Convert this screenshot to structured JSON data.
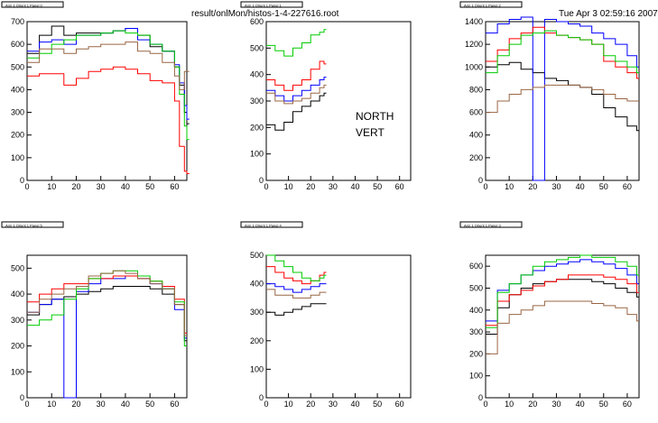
{
  "header": {
    "file_path": "result/onlMon/histos-1-4-227616.root",
    "timestamp": "Tue Apr  3 02:59:16 2007"
  },
  "overlay": {
    "north": "NORTH",
    "vert": "VERT"
  },
  "series_colors": [
    "#000000",
    "#0000ff",
    "#ff0000",
    "#00cc00",
    "#996644"
  ],
  "chart_data": [
    {
      "type": "line",
      "title": "Arm 1 Orient 1 Panel 0",
      "xlim": [
        0,
        65
      ],
      "ylim": [
        0,
        700
      ],
      "xticks": [
        0,
        10,
        20,
        30,
        40,
        50,
        60
      ],
      "yticks": [
        0,
        100,
        200,
        300,
        400,
        500,
        600,
        700
      ],
      "x": [
        0,
        5,
        10,
        15,
        20,
        25,
        30,
        35,
        40,
        45,
        50,
        55,
        60,
        62,
        64,
        65
      ],
      "series": [
        {
          "values": [
            560,
            640,
            680,
            640,
            650,
            650,
            650,
            660,
            670,
            640,
            590,
            570,
            500,
            420,
            300,
            250
          ]
        },
        {
          "values": [
            570,
            610,
            620,
            600,
            640,
            640,
            650,
            660,
            670,
            620,
            600,
            570,
            510,
            430,
            330,
            270
          ]
        },
        {
          "values": [
            460,
            470,
            470,
            420,
            450,
            480,
            490,
            500,
            490,
            470,
            440,
            430,
            350,
            150,
            40,
            30
          ]
        },
        {
          "values": [
            540,
            560,
            600,
            620,
            640,
            640,
            650,
            660,
            650,
            640,
            600,
            570,
            500,
            380,
            240,
            180
          ]
        },
        {
          "values": [
            520,
            580,
            580,
            560,
            580,
            590,
            600,
            600,
            610,
            570,
            560,
            520,
            460,
            400,
            480,
            480
          ]
        }
      ]
    },
    {
      "type": "line",
      "title": "Arm 1 Orient 1 Panel 1",
      "xlim": [
        0,
        65
      ],
      "ylim": [
        0,
        600
      ],
      "xticks": [
        0,
        10,
        20,
        30,
        40,
        50,
        60
      ],
      "yticks": [
        0,
        100,
        200,
        300,
        400,
        500,
        600
      ],
      "x": [
        0,
        4,
        8,
        12,
        16,
        20,
        24,
        26
      ],
      "series": [
        {
          "values": [
            210,
            190,
            220,
            260,
            280,
            300,
            320,
            330
          ]
        },
        {
          "values": [
            340,
            320,
            300,
            320,
            340,
            360,
            380,
            390
          ]
        },
        {
          "values": [
            380,
            360,
            340,
            360,
            380,
            420,
            450,
            440
          ]
        },
        {
          "values": [
            510,
            490,
            470,
            500,
            520,
            550,
            560,
            570
          ]
        },
        {
          "values": [
            330,
            300,
            290,
            300,
            310,
            330,
            350,
            360
          ]
        }
      ]
    },
    {
      "type": "line",
      "title": "Arm 1 Orient 1 Panel 2",
      "xlim": [
        0,
        65
      ],
      "ylim": [
        0,
        1400
      ],
      "xticks": [
        0,
        10,
        20,
        30,
        40,
        50,
        60
      ],
      "yticks": [
        0,
        200,
        400,
        600,
        800,
        1000,
        1200,
        1400
      ],
      "x": [
        0,
        5,
        10,
        15,
        20,
        25,
        30,
        35,
        40,
        45,
        50,
        55,
        60,
        64
      ],
      "series": [
        {
          "values": [
            1000,
            1020,
            1040,
            980,
            950,
            900,
            880,
            840,
            820,
            760,
            640,
            560,
            480,
            440
          ]
        },
        {
          "values": [
            1300,
            1380,
            1420,
            1440,
            0,
            1420,
            1400,
            1380,
            1360,
            1300,
            1250,
            1200,
            1100,
            1000
          ]
        },
        {
          "values": [
            1050,
            1150,
            1250,
            1300,
            1350,
            1300,
            1280,
            1260,
            1240,
            1200,
            1050,
            1000,
            950,
            900
          ]
        },
        {
          "values": [
            950,
            1100,
            1200,
            1280,
            1300,
            1320,
            1280,
            1260,
            1240,
            1200,
            1100,
            1050,
            1000,
            950
          ]
        },
        {
          "values": [
            600,
            700,
            760,
            800,
            820,
            840,
            840,
            840,
            820,
            800,
            760,
            720,
            700,
            700
          ]
        }
      ]
    },
    {
      "type": "line",
      "title": "Arm 1 Orient 1 Panel 5",
      "xlim": [
        0,
        65
      ],
      "ylim": [
        0,
        550
      ],
      "xticks": [
        0,
        10,
        20,
        30,
        40,
        50,
        60
      ],
      "yticks": [
        0,
        100,
        200,
        300,
        400,
        500
      ],
      "x": [
        0,
        5,
        10,
        15,
        20,
        25,
        30,
        35,
        40,
        45,
        50,
        55,
        60,
        64
      ],
      "series": [
        {
          "values": [
            320,
            360,
            380,
            390,
            400,
            410,
            420,
            430,
            430,
            430,
            420,
            400,
            360,
            220
          ]
        },
        {
          "values": [
            330,
            360,
            380,
            0,
            410,
            440,
            460,
            460,
            470,
            460,
            440,
            420,
            340,
            230
          ]
        },
        {
          "values": [
            370,
            400,
            420,
            440,
            440,
            460,
            460,
            470,
            470,
            460,
            450,
            430,
            380,
            250
          ]
        },
        {
          "values": [
            280,
            300,
            320,
            380,
            420,
            460,
            480,
            490,
            490,
            470,
            450,
            420,
            370,
            200
          ]
        },
        {
          "values": [
            330,
            380,
            400,
            420,
            430,
            470,
            480,
            490,
            480,
            460,
            440,
            420,
            360,
            240
          ]
        }
      ]
    },
    {
      "type": "line",
      "title": "Arm 1 Orient 1 Panel 4",
      "xlim": [
        0,
        65
      ],
      "ylim": [
        0,
        500
      ],
      "xticks": [
        0,
        10,
        20,
        30,
        40,
        50,
        60
      ],
      "yticks": [
        0,
        100,
        200,
        300,
        400,
        500
      ],
      "x": [
        0,
        4,
        8,
        12,
        16,
        20,
        24,
        26
      ],
      "series": [
        {
          "values": [
            300,
            290,
            300,
            310,
            320,
            330,
            330,
            330
          ]
        },
        {
          "values": [
            400,
            390,
            380,
            370,
            380,
            390,
            400,
            400
          ]
        },
        {
          "values": [
            460,
            440,
            420,
            410,
            400,
            410,
            430,
            440
          ]
        },
        {
          "values": [
            500,
            480,
            460,
            440,
            420,
            410,
            420,
            430
          ]
        },
        {
          "values": [
            380,
            360,
            360,
            350,
            350,
            360,
            370,
            370
          ]
        }
      ]
    },
    {
      "type": "line",
      "title": "Arm 1 Orient 1 Panel 3",
      "xlim": [
        0,
        65
      ],
      "ylim": [
        0,
        650
      ],
      "xticks": [
        0,
        10,
        20,
        30,
        40,
        50,
        60
      ],
      "yticks": [
        0,
        100,
        200,
        300,
        400,
        500,
        600
      ],
      "x": [
        0,
        5,
        10,
        15,
        20,
        25,
        30,
        35,
        40,
        45,
        50,
        55,
        60,
        64
      ],
      "series": [
        {
          "values": [
            290,
            410,
            470,
            500,
            520,
            530,
            540,
            540,
            540,
            530,
            520,
            500,
            480,
            460
          ]
        },
        {
          "values": [
            350,
            490,
            520,
            560,
            580,
            600,
            610,
            620,
            630,
            620,
            610,
            590,
            560,
            520
          ]
        },
        {
          "values": [
            330,
            440,
            470,
            490,
            510,
            530,
            540,
            560,
            560,
            560,
            550,
            540,
            520,
            480
          ]
        },
        {
          "values": [
            320,
            480,
            520,
            560,
            600,
            620,
            630,
            640,
            650,
            640,
            640,
            620,
            600,
            560
          ]
        },
        {
          "values": [
            200,
            340,
            380,
            400,
            420,
            440,
            440,
            440,
            440,
            430,
            420,
            410,
            380,
            350
          ]
        }
      ]
    }
  ]
}
